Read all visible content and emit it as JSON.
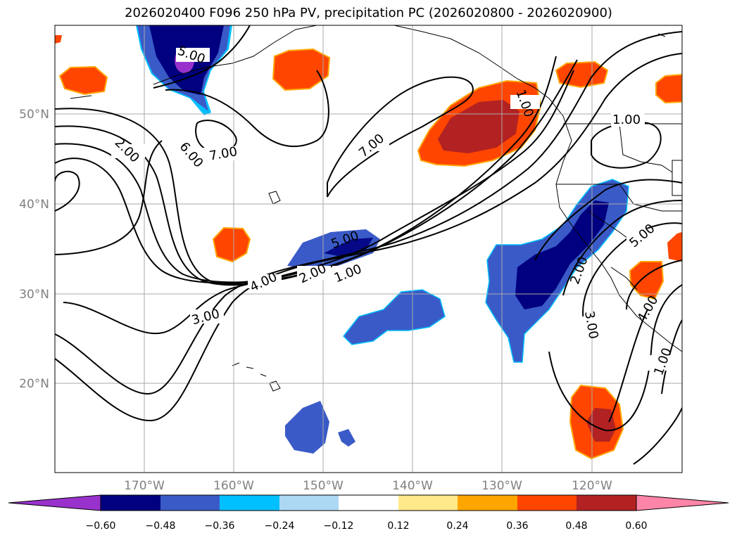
{
  "title": "2026020400 F096 250 hPa PV, precipitation PC (2026020800 - 2026020900)",
  "lat_labels": [
    "50°N",
    "40°N",
    "30°N",
    "20°N"
  ],
  "lon_labels": [
    "170°W",
    "160°W",
    "150°W",
    "140°W",
    "130°W",
    "120°W"
  ],
  "contour_labels": [
    "5.00",
    "2.00",
    "6.00",
    "7.00",
    "7.00",
    "1.00",
    "5.00",
    "4.00",
    "2.00",
    "1.00",
    "3.00",
    "2.00",
    "5.00",
    "3.00",
    "4.00",
    "1.00",
    "1.00"
  ],
  "colorbar": {
    "ticks": [
      "−0.60",
      "−0.48",
      "−0.36",
      "−0.24",
      "−0.12",
      "0.12",
      "0.24",
      "0.36",
      "0.48",
      "0.60"
    ],
    "colors": [
      "#9932cc",
      "#000080",
      "#3a5bc7",
      "#00bfff",
      "#add8f4",
      "#ffffff",
      "#ffe98a",
      "#ffa500",
      "#ff4500",
      "#b22222",
      "#ff85a8"
    ]
  }
}
